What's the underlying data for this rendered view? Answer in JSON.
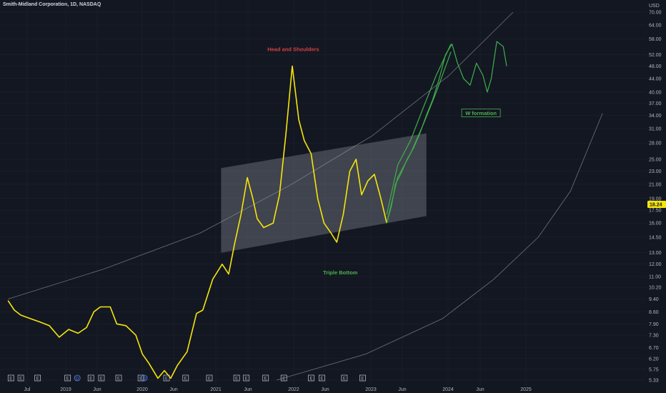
{
  "header": {
    "title": "Smith-Midland Corporation, 1D, NASDAQ",
    "currency": "USD"
  },
  "chart_data": {
    "type": "line",
    "yscale": "log",
    "ylim": [
      5.33,
      70.0
    ],
    "y_ticks": [
      "70.00",
      "64.00",
      "58.00",
      "52.00",
      "48.00",
      "44.00",
      "40.00",
      "37.00",
      "34.00",
      "31.00",
      "28.00",
      "25.00",
      "23.00",
      "21.00",
      "19.00",
      "17.50",
      "16.00",
      "14.50",
      "13.00",
      "12.00",
      "11.00",
      "10.20",
      "9.40",
      "8.60",
      "7.90",
      "7.30",
      "6.70",
      "6.20",
      "5.75",
      "5.33"
    ],
    "x_ticks": [
      "Jul",
      "2019",
      "Jun",
      "2020",
      "Jun",
      "2021",
      "Jun",
      "2022",
      "Jun",
      "2023",
      "Jun",
      "2024",
      "Jun",
      "2025"
    ],
    "last_price": "18.24",
    "colors": {
      "history": "#f5e50a",
      "projection": "#3fae4a",
      "head_label": "#d34141",
      "pattern_label": "#4caf50",
      "channel": "#9598a1"
    },
    "series": [
      {
        "values": [
          [
            "2018-04-01",
            9.3
          ],
          [
            "2018-05-01",
            8.7
          ],
          [
            "2018-06-01",
            8.4
          ],
          [
            "2018-07-15",
            8.2
          ],
          [
            "2018-09-01",
            8.0
          ],
          [
            "2018-10-15",
            7.8
          ],
          [
            "2018-12-01",
            7.2
          ],
          [
            "2019-01-15",
            7.6
          ],
          [
            "2019-03-01",
            7.4
          ],
          [
            "2019-04-10",
            7.7
          ],
          [
            "2019-05-15",
            8.6
          ],
          [
            "2019-06-15",
            8.9
          ],
          [
            "2019-08-01",
            8.9
          ],
          [
            "2019-09-01",
            7.9
          ],
          [
            "2019-10-15",
            7.8
          ],
          [
            "2019-12-01",
            7.3
          ],
          [
            "2020-01-01",
            6.4
          ],
          [
            "2020-02-01",
            6.0
          ],
          [
            "2020-03-15",
            5.4
          ],
          [
            "2020-04-15",
            5.7
          ],
          [
            "2020-05-15",
            5.4
          ],
          [
            "2020-06-15",
            5.9
          ],
          [
            "2020-08-01",
            6.5
          ],
          [
            "2020-09-15",
            8.5
          ],
          [
            "2020-10-15",
            8.7
          ],
          [
            "2020-12-01",
            10.8
          ],
          [
            "2021-01-15",
            12.0
          ],
          [
            "2021-02-15",
            11.2
          ],
          [
            "2021-03-15",
            13.8
          ],
          [
            "2021-04-15",
            17.0
          ],
          [
            "2021-05-15",
            22.0
          ],
          [
            "2021-06-10",
            19.0
          ],
          [
            "2021-07-01",
            16.5
          ],
          [
            "2021-08-01",
            15.5
          ],
          [
            "2021-09-15",
            16.0
          ],
          [
            "2021-10-15",
            19.5
          ],
          [
            "2021-11-15",
            30.0
          ],
          [
            "2021-12-15",
            48.0
          ],
          [
            "2022-01-15",
            33.0
          ],
          [
            "2022-02-10",
            28.5
          ],
          [
            "2022-03-15",
            26.0
          ],
          [
            "2022-04-15",
            19.0
          ],
          [
            "2022-05-15",
            16.0
          ],
          [
            "2022-06-15",
            15.0
          ],
          [
            "2022-07-15",
            14.0
          ],
          [
            "2022-08-15",
            17.0
          ],
          [
            "2022-09-15",
            23.0
          ],
          [
            "2022-10-15",
            25.0
          ],
          [
            "2022-11-10",
            19.5
          ],
          [
            "2022-12-10",
            21.5
          ],
          [
            "2023-01-10",
            22.5
          ],
          [
            "2023-02-10",
            19.0
          ],
          [
            "2023-03-10",
            16.0
          ]
        ]
      },
      {
        "values": [
          [
            "2023-03-10",
            16.0
          ],
          [
            "2023-04-01",
            18.0
          ],
          [
            "2023-04-20",
            21.0
          ],
          [
            "2023-05-15",
            22.5
          ],
          [
            "2023-06-15",
            25.0
          ],
          [
            "2023-07-15",
            27.0
          ],
          [
            "2023-08-15",
            30.0
          ],
          [
            "2023-09-15",
            34.0
          ],
          [
            "2023-10-15",
            38.0
          ],
          [
            "2023-11-15",
            44.0
          ],
          [
            "2023-12-15",
            52.0
          ],
          [
            "2024-01-15",
            56.0
          ],
          [
            "2024-02-10",
            49.0
          ],
          [
            "2024-03-10",
            44.0
          ],
          [
            "2024-04-10",
            42.0
          ],
          [
            "2024-05-10",
            49.0
          ],
          [
            "2024-06-10",
            45.0
          ],
          [
            "2024-07-01",
            40.0
          ],
          [
            "2024-07-20",
            44.0
          ],
          [
            "2024-08-15",
            57.0
          ],
          [
            "2024-09-15",
            55.0
          ],
          [
            "2024-10-01",
            48.0
          ]
        ]
      }
    ],
    "projection_band": [
      [
        [
          "2023-03-10",
          16.0
        ],
        [
          "2023-05-01",
          22.0
        ],
        [
          "2023-07-01",
          26.0
        ],
        [
          "2023-09-01",
          32.0
        ],
        [
          "2023-11-01",
          40.0
        ],
        [
          "2024-01-10",
          53.0
        ]
      ],
      [
        [
          "2023-03-10",
          17.0
        ],
        [
          "2023-05-01",
          24.0
        ],
        [
          "2023-07-01",
          28.5
        ],
        [
          "2023-09-01",
          36.0
        ],
        [
          "2023-11-01",
          45.0
        ],
        [
          "2024-01-10",
          56.0
        ]
      ]
    ],
    "channel": [
      [
        "2021-01-10",
        13.0
      ],
      [
        "2023-09-15",
        16.8
      ],
      [
        "2023-09-15",
        30.0
      ],
      [
        "2021-01-10",
        23.5
      ]
    ],
    "arcs": [
      [
        [
          "2018-04-01",
          9.4
        ],
        [
          "2019-07-01",
          11.6
        ],
        [
          "2020-10-01",
          14.9
        ],
        [
          "2021-12-01",
          20.8
        ],
        [
          "2023-01-01",
          29.5
        ],
        [
          "2024-01-01",
          45.0
        ],
        [
          "2024-11-01",
          70.0
        ]
      ],
      [
        [
          "2021-10-01",
          5.33
        ],
        [
          "2022-12-01",
          6.4
        ],
        [
          "2023-12-01",
          8.2
        ],
        [
          "2024-08-01",
          10.8
        ],
        [
          "2025-03-01",
          14.5
        ],
        [
          "2025-08-01",
          20.0
        ],
        [
          "2026-01-01",
          34.5
        ]
      ]
    ],
    "annotations": [
      {
        "text": "Head and Shoulders",
        "x": "2021-12-20",
        "y": 54.0,
        "kind": "head"
      },
      {
        "text": "Triple Bottom",
        "x": "2022-08-01",
        "y": 11.3,
        "kind": "pattern"
      },
      {
        "text": "W formation",
        "x": "2024-06-01",
        "y": 34.5,
        "kind": "boxed"
      }
    ],
    "event_markers": [
      {
        "x": "2018-04-15",
        "type": "E"
      },
      {
        "x": "2018-06-01",
        "type": "E"
      },
      {
        "x": "2018-08-20",
        "type": "E"
      },
      {
        "x": "2019-01-10",
        "type": "E"
      },
      {
        "x": "2019-02-25",
        "type": "D"
      },
      {
        "x": "2019-05-01",
        "type": "E"
      },
      {
        "x": "2019-06-20",
        "type": "E"
      },
      {
        "x": "2019-09-10",
        "type": "E"
      },
      {
        "x": "2019-12-25",
        "type": "E"
      },
      {
        "x": "2020-01-10",
        "type": "D"
      },
      {
        "x": "2020-04-25",
        "type": "E"
      },
      {
        "x": "2020-07-25",
        "type": "E"
      },
      {
        "x": "2020-11-15",
        "type": "E"
      },
      {
        "x": "2021-03-25",
        "type": "E"
      },
      {
        "x": "2021-05-10",
        "type": "E"
      },
      {
        "x": "2021-08-10",
        "type": "E"
      },
      {
        "x": "2021-11-05",
        "type": "E"
      },
      {
        "x": "2022-03-15",
        "type": "E"
      },
      {
        "x": "2022-05-05",
        "type": "E"
      },
      {
        "x": "2022-08-20",
        "type": "E"
      },
      {
        "x": "2022-11-15",
        "type": "E"
      }
    ]
  }
}
